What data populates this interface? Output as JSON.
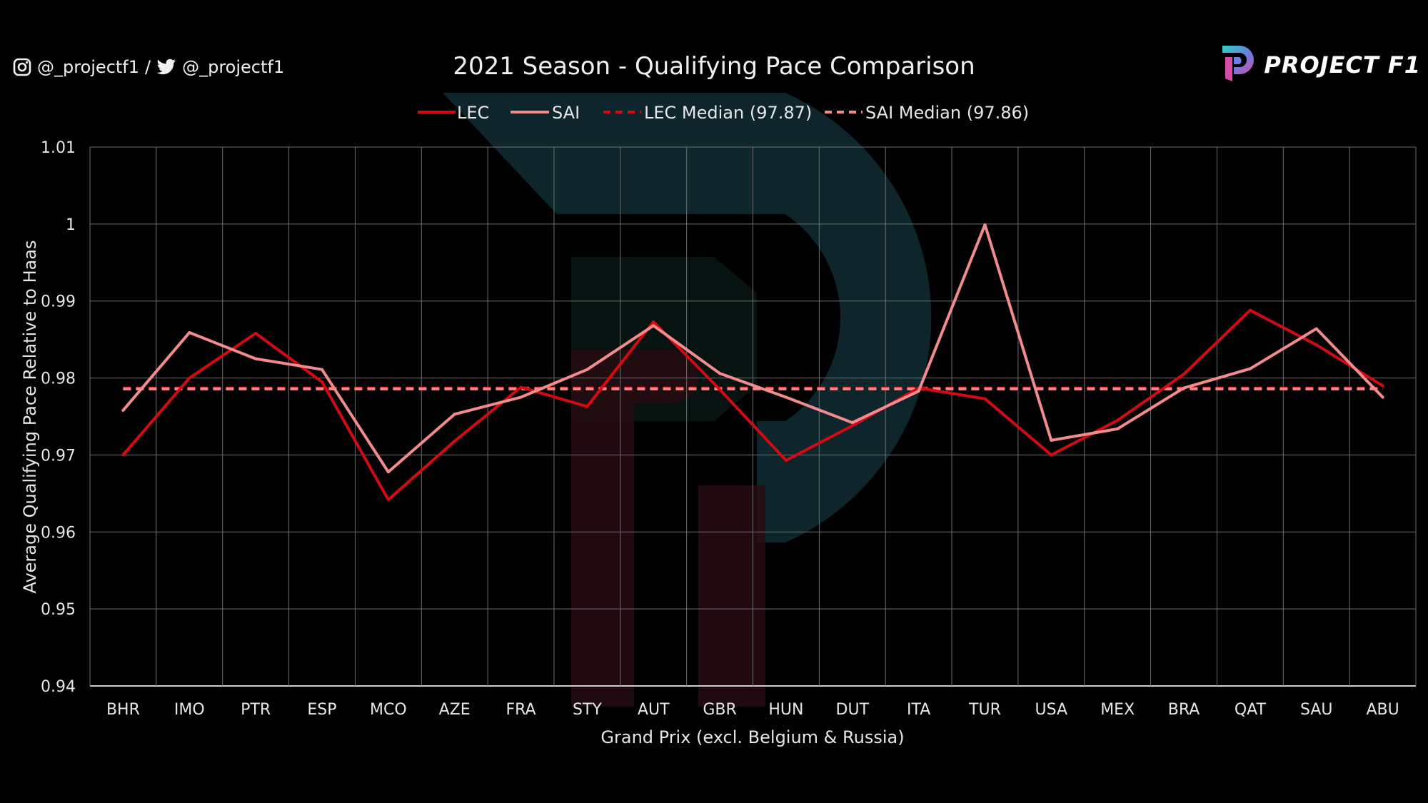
{
  "header": {
    "instagram_handle": "@_projectf1",
    "separator": "/",
    "twitter_handle": "@_projectf1",
    "logo_text": "PROJECT F1"
  },
  "colors": {
    "background": "#000000",
    "lec": "#d40a12",
    "sai": "#f28c8c",
    "grid": "#6e6e6e",
    "text": "#e6e6e6"
  },
  "chart_data": {
    "type": "line",
    "title": "2021 Season - Qualifying Pace Comparison",
    "xlabel": "Grand Prix (excl. Belgium & Russia)",
    "ylabel": "Average Qualifying Pace Relative to Haas",
    "categories": [
      "BHR",
      "IMO",
      "PTR",
      "ESP",
      "MCO",
      "AZE",
      "FRA",
      "STY",
      "AUT",
      "GBR",
      "HUN",
      "DUT",
      "ITA",
      "TUR",
      "USA",
      "MEX",
      "BRA",
      "QAT",
      "SAU",
      "ABU"
    ],
    "yticks": [
      "0.94",
      "0.95",
      "0.96",
      "0.97",
      "0.98",
      "0.99",
      "1",
      "1.01"
    ],
    "ylim": [
      0.94,
      1.01
    ],
    "grid": true,
    "legend_position": "top-center",
    "series": [
      {
        "name": "LEC",
        "color": "#d40a12",
        "dashed": false,
        "values": [
          0.97,
          0.98,
          0.9858,
          0.9795,
          0.9642,
          0.9718,
          0.9788,
          0.9763,
          0.9873,
          0.9785,
          0.9693,
          0.9738,
          0.9787,
          0.9773,
          0.97,
          0.9745,
          0.9805,
          0.9888,
          0.9843,
          0.979
        ]
      },
      {
        "name": "SAI",
        "color": "#f28c8c",
        "dashed": false,
        "values": [
          0.9758,
          0.9859,
          0.9825,
          0.9811,
          0.9678,
          0.9753,
          0.9775,
          0.9811,
          0.9868,
          0.9806,
          0.9775,
          0.9742,
          0.9783,
          0.9999,
          0.9719,
          0.9734,
          0.9787,
          0.9812,
          0.9864,
          0.9775
        ]
      },
      {
        "name": "LEC Median (97.87)",
        "color": "#d40a12",
        "dashed": true,
        "values": [
          0.9787,
          0.9787,
          0.9787,
          0.9787,
          0.9787,
          0.9787,
          0.9787,
          0.9787,
          0.9787,
          0.9787,
          0.9787,
          0.9787,
          0.9787,
          0.9787,
          0.9787,
          0.9787,
          0.9787,
          0.9787,
          0.9787,
          0.9787
        ]
      },
      {
        "name": "SAI Median (97.86)",
        "color": "#f28c8c",
        "dashed": true,
        "values": [
          0.9786,
          0.9786,
          0.9786,
          0.9786,
          0.9786,
          0.9786,
          0.9786,
          0.9786,
          0.9786,
          0.9786,
          0.9786,
          0.9786,
          0.9786,
          0.9786,
          0.9786,
          0.9786,
          0.9786,
          0.9786,
          0.9786,
          0.9786
        ]
      }
    ]
  }
}
